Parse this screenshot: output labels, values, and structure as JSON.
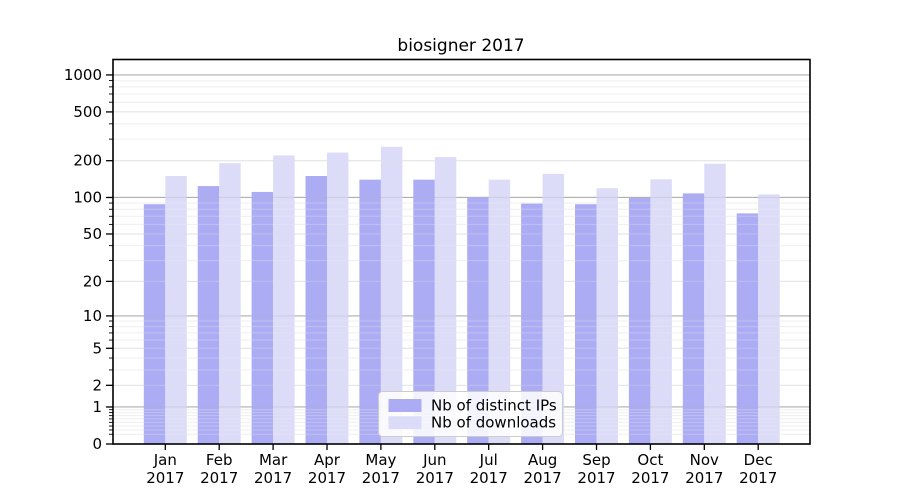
{
  "chart_data": {
    "type": "bar",
    "title": "biosigner 2017",
    "categories": [
      "Jan",
      "Feb",
      "Mar",
      "Apr",
      "May",
      "Jun",
      "Jul",
      "Aug",
      "Sep",
      "Oct",
      "Nov",
      "Dec"
    ],
    "year_label": "2017",
    "series": [
      {
        "name": "Nb of distinct IPs",
        "color": "#acacf4",
        "values": [
          88,
          124,
          111,
          150,
          140,
          140,
          101,
          89,
          88,
          99,
          108,
          74
        ]
      },
      {
        "name": "Nb of downloads",
        "color": "#dcdcf8",
        "values": [
          150,
          191,
          221,
          233,
          260,
          214,
          140,
          156,
          119,
          141,
          189,
          106
        ]
      }
    ],
    "xlabel": "",
    "ylabel": "",
    "yscale": "log1p",
    "yticks": [
      0,
      1,
      2,
      5,
      10,
      20,
      50,
      100,
      200,
      500,
      1000
    ],
    "ylim": [
      0,
      1320
    ],
    "grid": true,
    "legend_position": "bottom-center-inside",
    "colors": {
      "grid_decade": "#b0b0b0",
      "grid_labeled": "#e2e2e2",
      "grid_minor": "#f0f0f0",
      "axis": "#000000",
      "legend_border": "#cccccc",
      "legend_background": "#ffffff"
    }
  }
}
